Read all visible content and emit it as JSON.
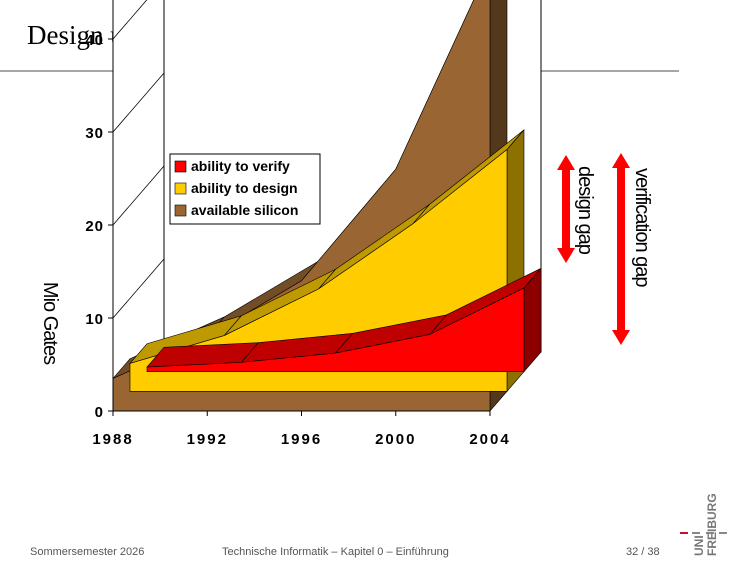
{
  "slide": {
    "title": "Design und Verification Gap"
  },
  "footer": {
    "left": "Sommersemester 2026",
    "center": "Technische Informatik – Kapitel 0 – Einführung",
    "page": "32 / 38"
  },
  "logo": {
    "line1": "UNI",
    "line2": "FREIBURG"
  },
  "chart_data": {
    "type": "area",
    "title": "",
    "xlabel": "",
    "ylabel": "Mio Gates",
    "categories": [
      "1988",
      "1992",
      "1996",
      "2000",
      "2004"
    ],
    "yticks": [
      "0",
      "10",
      "20",
      "30",
      "40"
    ],
    "ylim": [
      0,
      40
    ],
    "legend_position": "top-left",
    "series": [
      {
        "name": "ability to verify",
        "color": "#ff0000",
        "values": [
          0.5,
          1,
          2,
          4,
          9
        ]
      },
      {
        "name": "ability to design",
        "color": "#ffcc00",
        "values": [
          3,
          6,
          11,
          18,
          26
        ]
      },
      {
        "name": "available silicon",
        "color": "#996633",
        "values": [
          3.5,
          8,
          14,
          26,
          48
        ]
      }
    ],
    "annotations": [
      {
        "label": "design gap",
        "color": "#ff0000"
      },
      {
        "label": "verification gap",
        "color": "#ff0000"
      }
    ]
  }
}
